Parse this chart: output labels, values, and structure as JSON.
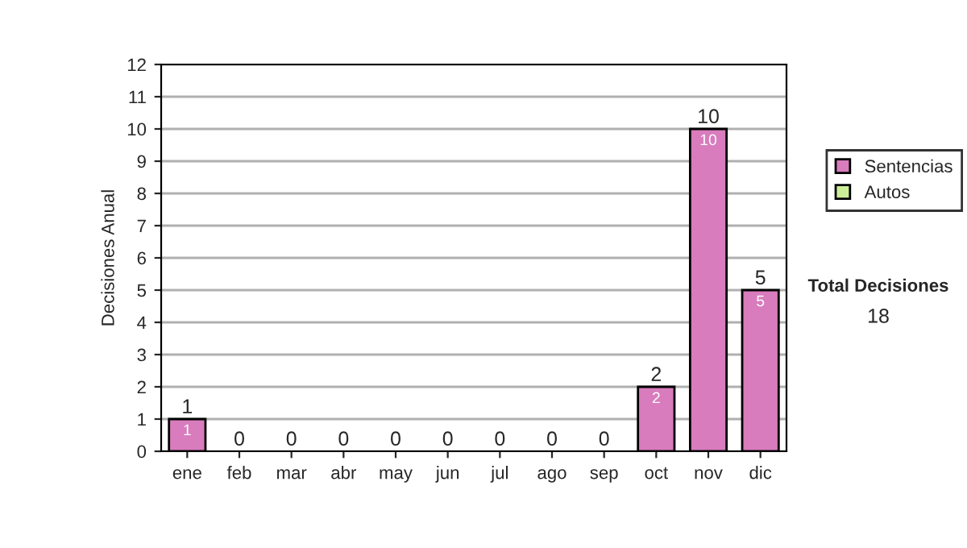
{
  "chart_data": {
    "type": "bar",
    "stacked": true,
    "ylabel": "Decisiones Anual",
    "categories": [
      "ene",
      "feb",
      "mar",
      "abr",
      "may",
      "jun",
      "jul",
      "ago",
      "sep",
      "oct",
      "nov",
      "dic"
    ],
    "series": [
      {
        "name": "Sentencias",
        "color": "#d87cbd",
        "values": [
          1,
          0,
          0,
          0,
          0,
          0,
          0,
          0,
          0,
          2,
          10,
          5
        ],
        "value_labels": [
          "1",
          null,
          null,
          null,
          null,
          null,
          null,
          null,
          null,
          "2",
          "10",
          "5"
        ]
      },
      {
        "name": "Autos",
        "color": "#ccee99",
        "values": [
          0,
          0,
          0,
          0,
          0,
          0,
          0,
          0,
          0,
          0,
          0,
          0
        ]
      }
    ],
    "totals": [
      "1",
      "0",
      "0",
      "0",
      "0",
      "0",
      "0",
      "0",
      "0",
      "2",
      "10",
      "5"
    ],
    "ylim": [
      0,
      12
    ],
    "yticks": [
      0,
      1,
      2,
      3,
      4,
      5,
      6,
      7,
      8,
      9,
      10,
      11,
      12
    ],
    "grid": "y",
    "legend": "right",
    "annotations": [
      "Total Decisiones",
      "18"
    ]
  }
}
